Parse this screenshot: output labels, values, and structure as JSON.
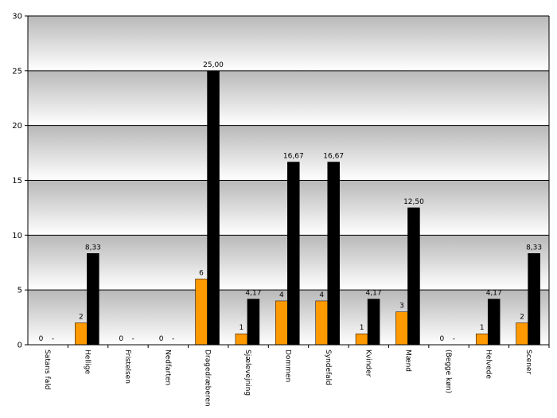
{
  "chart_data": {
    "type": "bar",
    "categories": [
      "Satans fald",
      "Hellige",
      "Fristelsen",
      "Nedfarten",
      "Dragedræberen",
      "Sjælevejning",
      "Dommen",
      "Syndefald",
      "Kvinder",
      "Mænd",
      "(Begge køn)",
      "Helvede",
      "Scener"
    ],
    "series": [
      {
        "color": "#ff9900",
        "values": [
          0,
          2,
          0,
          0,
          6,
          1,
          4,
          4,
          1,
          3,
          0,
          1,
          2
        ]
      },
      {
        "color": "#000000",
        "values": [
          0,
          8.33,
          0,
          0,
          25,
          4.17,
          16.67,
          16.67,
          4.17,
          12.5,
          0,
          4.17,
          8.33
        ],
        "value_labels": [
          "-",
          "8,33",
          "-",
          "-",
          "25,00",
          "4,17",
          "16,67",
          "16,67",
          "4,17",
          "12,50",
          "-",
          "4,17",
          "8,33"
        ]
      }
    ],
    "ylim": [
      0,
      30
    ],
    "yticks": [
      0,
      5,
      10,
      15,
      20,
      25,
      30
    ],
    "grid": true
  }
}
